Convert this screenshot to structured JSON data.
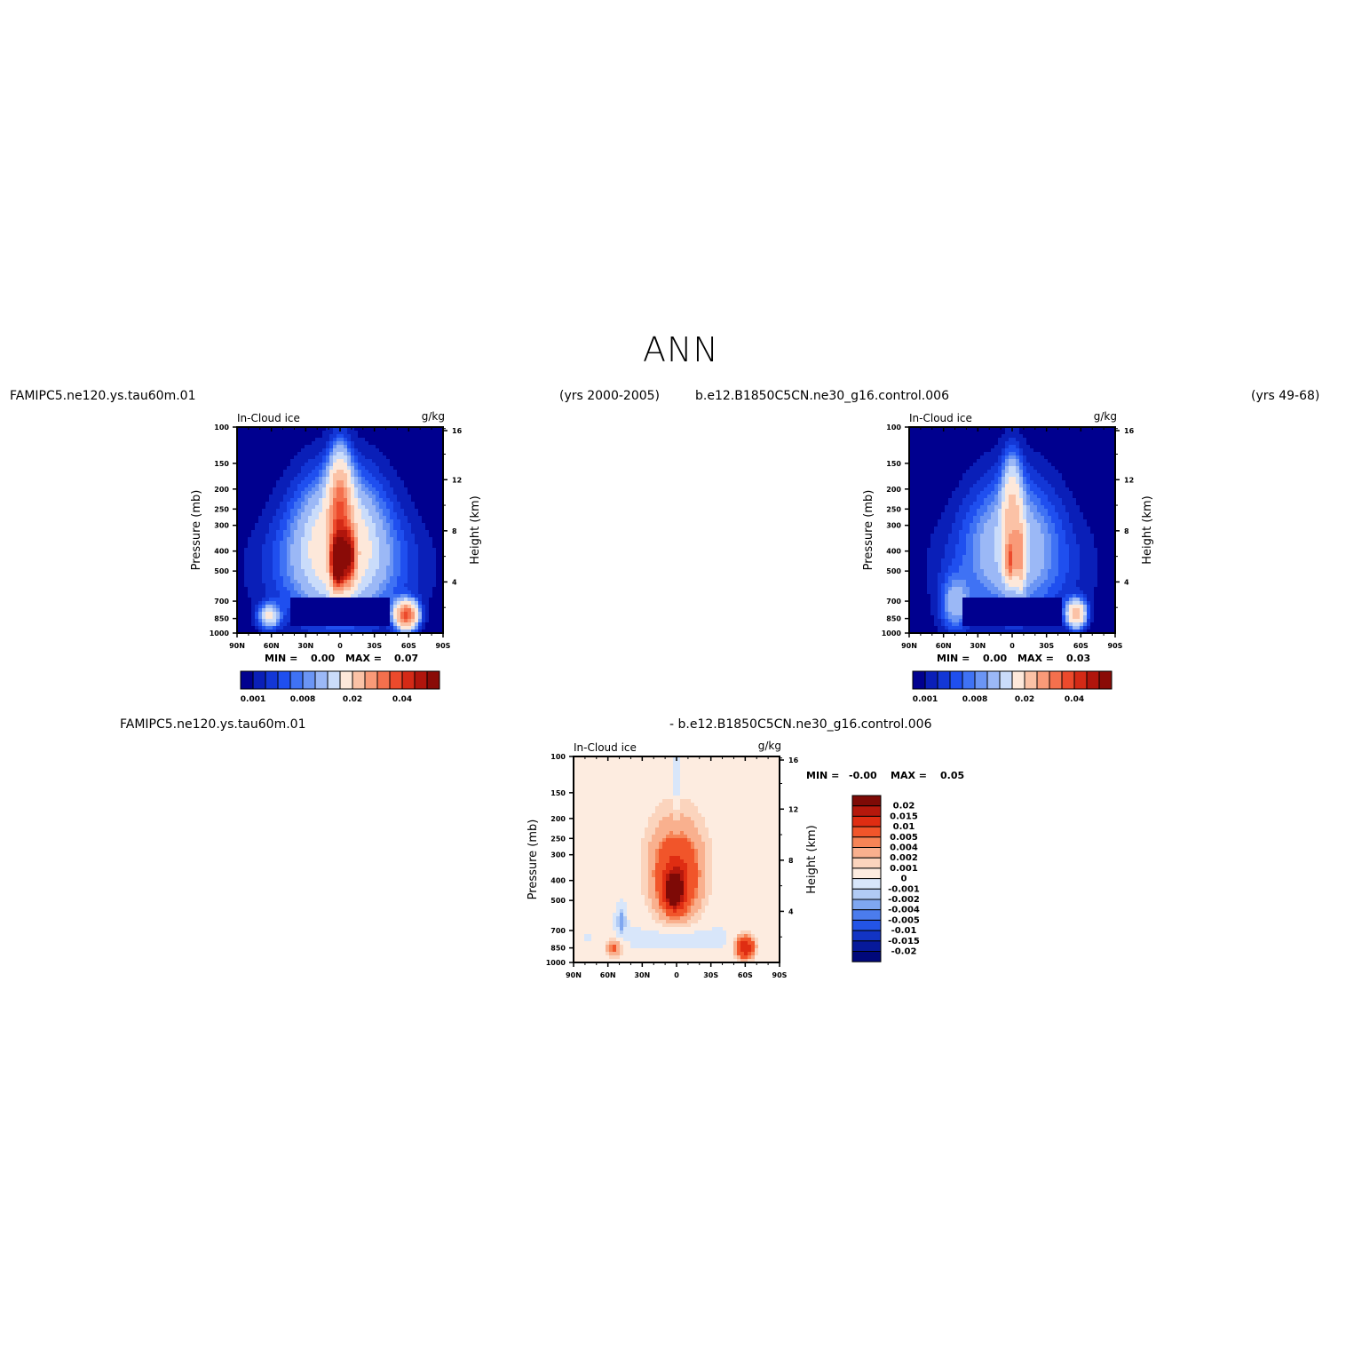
{
  "page_title": "ANN",
  "panels": [
    {
      "case": "FAMIPC5.ne120.ys.tau60m.01",
      "years": "(yrs 2000-2005)",
      "var_title": "In-Cloud ice",
      "units": "g/kg",
      "min_label": "MIN =",
      "min_value": "0.00",
      "max_label": "MAX =",
      "max_value": "0.07"
    },
    {
      "case": "b.e12.B1850C5CN.ne30_g16.control.006",
      "years": "(yrs 49-68)",
      "var_title": "In-Cloud ice",
      "units": "g/kg",
      "min_label": "MIN =",
      "min_value": "0.00",
      "max_label": "MAX =",
      "max_value": "0.03"
    },
    {
      "case": "FAMIPC5.ne120.ys.tau60m.01",
      "case2": "- b.e12.B1850C5CN.ne30_g16.control.006",
      "var_title": "In-Cloud ice",
      "units": "g/kg",
      "min_label": "MIN =",
      "min_value": "-0.00",
      "max_label": "MAX =",
      "max_value": "0.05"
    }
  ],
  "chart_data": [
    {
      "type": "heatmap",
      "title": "In-Cloud ice",
      "units": "g/kg",
      "xlabel": "",
      "ylabel": "Pressure (mb)",
      "ylabel_right": "Height (km)",
      "x_ticks": [
        "90N",
        "60N",
        "30N",
        "0",
        "30S",
        "60S",
        "90S"
      ],
      "x_values": [
        90,
        60,
        30,
        0,
        -30,
        -60,
        -90
      ],
      "y_ticks": [
        "100",
        "150",
        "200",
        "250",
        "300",
        "400",
        "500",
        "700",
        "850",
        "1000"
      ],
      "y_values": [
        100,
        150,
        200,
        250,
        300,
        400,
        500,
        700,
        850,
        1000
      ],
      "y_scale": "log",
      "right_ticks": [
        "4",
        "8",
        "12",
        "16"
      ],
      "right_values": [
        4,
        8,
        12,
        16
      ],
      "colorbar_labels": [
        "0.001",
        "0.008",
        "0.02",
        "0.04"
      ],
      "colorbar_orientation": "horizontal",
      "min": 0.0,
      "max": 0.07
    },
    {
      "type": "heatmap",
      "title": "In-Cloud ice",
      "units": "g/kg",
      "xlabel": "",
      "ylabel": "Pressure (mb)",
      "ylabel_right": "Height (km)",
      "x_ticks": [
        "90N",
        "60N",
        "30N",
        "0",
        "30S",
        "60S",
        "90S"
      ],
      "x_values": [
        90,
        60,
        30,
        0,
        -30,
        -60,
        -90
      ],
      "y_ticks": [
        "100",
        "150",
        "200",
        "250",
        "300",
        "400",
        "500",
        "700",
        "850",
        "1000"
      ],
      "y_values": [
        100,
        150,
        200,
        250,
        300,
        400,
        500,
        700,
        850,
        1000
      ],
      "y_scale": "log",
      "right_ticks": [
        "4",
        "8",
        "12",
        "16"
      ],
      "right_values": [
        4,
        8,
        12,
        16
      ],
      "colorbar_labels": [
        "0.001",
        "0.008",
        "0.02",
        "0.04"
      ],
      "colorbar_orientation": "horizontal",
      "min": 0.0,
      "max": 0.03
    },
    {
      "type": "heatmap",
      "title": "In-Cloud ice",
      "units": "g/kg",
      "xlabel": "",
      "ylabel": "Pressure (mb)",
      "ylabel_right": "Height (km)",
      "x_ticks": [
        "90N",
        "60N",
        "30N",
        "0",
        "30S",
        "60S",
        "90S"
      ],
      "x_values": [
        90,
        60,
        30,
        0,
        -30,
        -60,
        -90
      ],
      "y_ticks": [
        "100",
        "150",
        "200",
        "250",
        "300",
        "400",
        "500",
        "700",
        "850",
        "1000"
      ],
      "y_values": [
        100,
        150,
        200,
        250,
        300,
        400,
        500,
        700,
        850,
        1000
      ],
      "y_scale": "log",
      "right_ticks": [
        "4",
        "8",
        "12",
        "16"
      ],
      "right_values": [
        4,
        8,
        12,
        16
      ],
      "colorbar_labels": [
        "0.02",
        "0.015",
        "0.01",
        "0.005",
        "0.004",
        "0.002",
        "0.001",
        "0",
        "-0.001",
        "-0.002",
        "-0.004",
        "-0.005",
        "-0.01",
        "-0.015",
        "-0.02"
      ],
      "colorbar_orientation": "vertical",
      "min": -0.0,
      "max": 0.05
    }
  ],
  "palettes": {
    "seq": [
      "#00008f",
      "#0a1fb8",
      "#1337d6",
      "#1f4fef",
      "#3f72f4",
      "#6b95f4",
      "#9bb8f6",
      "#cadcfa",
      "#fde8da",
      "#fbc2a6",
      "#f99a78",
      "#f4704d",
      "#ec4a2c",
      "#d42a16",
      "#b0150c",
      "#8a0b07"
    ],
    "diff": [
      "#7e0a06",
      "#b5180c",
      "#df2d12",
      "#f1552a",
      "#f68456",
      "#f9b08e",
      "#fbd4bd",
      "#fdece0",
      "#d8e6fa",
      "#b1cbf5",
      "#7fa7f1",
      "#4b7ced",
      "#2354e6",
      "#1234c4",
      "#06199a",
      "#00087a"
    ]
  }
}
